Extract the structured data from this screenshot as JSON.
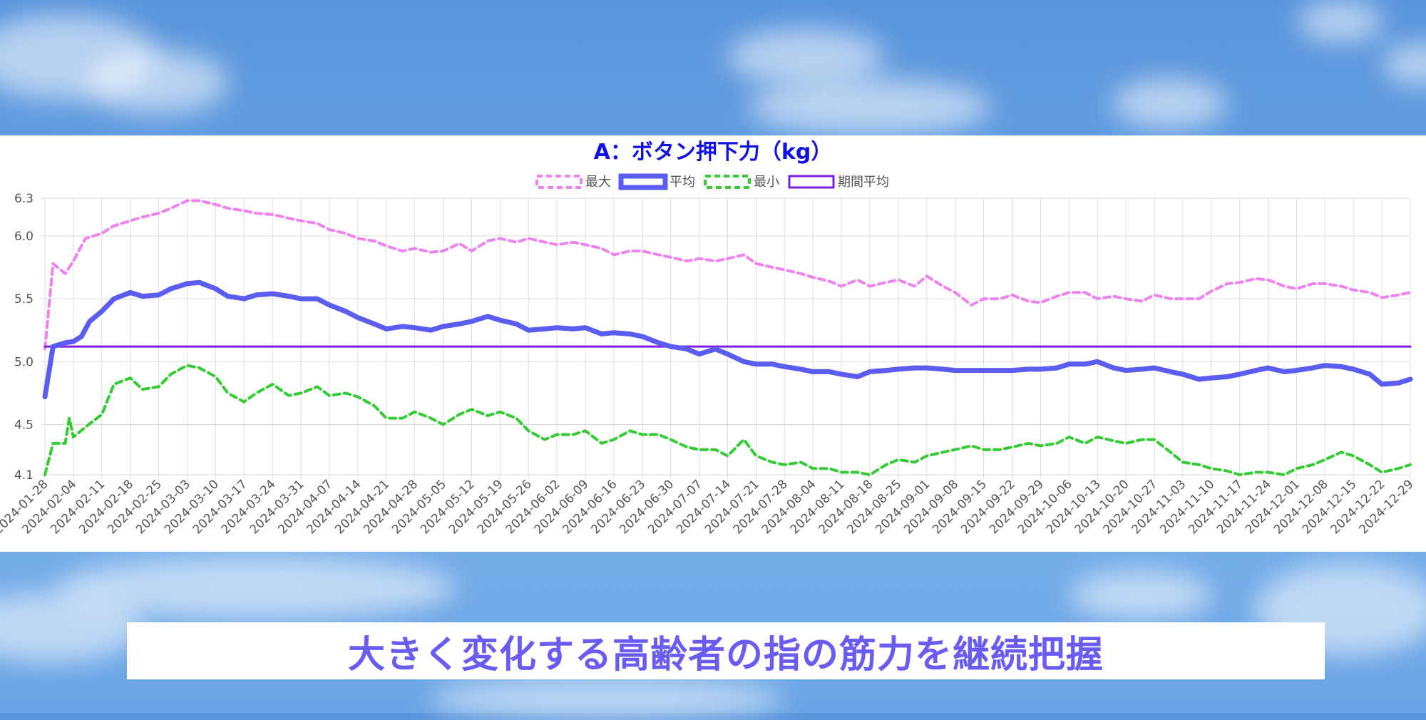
{
  "caption": "大きく変化する高齢者の指の筋力を継続把握",
  "chart_data": {
    "type": "line",
    "title": "A：ボタン押下力（kg）",
    "xlabel": "",
    "ylabel": "",
    "ylim": [
      4.1,
      6.3
    ],
    "y_ticks": [
      4.1,
      4.5,
      5.0,
      5.5,
      6.0,
      6.3
    ],
    "grid": true,
    "legend_position": "top-center",
    "x_start": "2024-01-28",
    "x_end": "2024-12-29",
    "x_tick_labels": [
      "2024-01-28",
      "2024-02-04",
      "2024-02-11",
      "2024-02-18",
      "2024-02-25",
      "2024-03-03",
      "2024-03-10",
      "2024-03-17",
      "2024-03-24",
      "2024-03-31",
      "2024-04-07",
      "2024-04-14",
      "2024-04-21",
      "2024-04-28",
      "2024-05-05",
      "2024-05-12",
      "2024-05-19",
      "2024-05-26",
      "2024-06-02",
      "2024-06-09",
      "2024-06-16",
      "2024-06-23",
      "2024-06-30",
      "2024-07-07",
      "2024-07-14",
      "2024-07-21",
      "2024-07-28",
      "2024-08-04",
      "2024-08-11",
      "2024-08-18",
      "2024-08-25",
      "2024-09-01",
      "2024-09-08",
      "2024-09-15",
      "2024-09-22",
      "2024-09-29",
      "2024-10-06",
      "2024-10-13",
      "2024-10-20",
      "2024-10-27",
      "2024-11-03",
      "2024-11-10",
      "2024-11-17",
      "2024-11-24",
      "2024-12-01",
      "2024-12-08",
      "2024-12-15",
      "2024-12-22",
      "2024-12-29"
    ],
    "series": [
      {
        "name": "最大",
        "color": "#ee82ee",
        "style": "dashed",
        "x": [
          "2024-01-28",
          "2024-01-30",
          "2024-02-02",
          "2024-02-04",
          "2024-02-07",
          "2024-02-11",
          "2024-02-14",
          "2024-02-18",
          "2024-02-21",
          "2024-02-25",
          "2024-02-28",
          "2024-03-03",
          "2024-03-06",
          "2024-03-10",
          "2024-03-13",
          "2024-03-17",
          "2024-03-20",
          "2024-03-24",
          "2024-03-28",
          "2024-03-31",
          "2024-04-04",
          "2024-04-07",
          "2024-04-11",
          "2024-04-14",
          "2024-04-18",
          "2024-04-21",
          "2024-04-25",
          "2024-04-28",
          "2024-05-02",
          "2024-05-05",
          "2024-05-09",
          "2024-05-12",
          "2024-05-16",
          "2024-05-19",
          "2024-05-23",
          "2024-05-26",
          "2024-05-30",
          "2024-06-02",
          "2024-06-06",
          "2024-06-09",
          "2024-06-13",
          "2024-06-16",
          "2024-06-20",
          "2024-06-23",
          "2024-06-27",
          "2024-06-30",
          "2024-07-04",
          "2024-07-07",
          "2024-07-11",
          "2024-07-14",
          "2024-07-18",
          "2024-07-21",
          "2024-07-25",
          "2024-07-28",
          "2024-08-01",
          "2024-08-04",
          "2024-08-08",
          "2024-08-11",
          "2024-08-15",
          "2024-08-18",
          "2024-08-22",
          "2024-08-25",
          "2024-08-29",
          "2024-09-01",
          "2024-09-05",
          "2024-09-08",
          "2024-09-12",
          "2024-09-15",
          "2024-09-19",
          "2024-09-22",
          "2024-09-26",
          "2024-09-29",
          "2024-10-03",
          "2024-10-06",
          "2024-10-10",
          "2024-10-13",
          "2024-10-17",
          "2024-10-20",
          "2024-10-24",
          "2024-10-27",
          "2024-10-31",
          "2024-11-03",
          "2024-11-07",
          "2024-11-10",
          "2024-11-14",
          "2024-11-17",
          "2024-11-21",
          "2024-11-24",
          "2024-11-28",
          "2024-12-01",
          "2024-12-05",
          "2024-12-08",
          "2024-12-12",
          "2024-12-15",
          "2024-12-19",
          "2024-12-22",
          "2024-12-26",
          "2024-12-29"
        ],
        "values": [
          5.1,
          5.78,
          5.7,
          5.8,
          5.98,
          6.02,
          6.08,
          6.12,
          6.15,
          6.18,
          6.22,
          6.28,
          6.28,
          6.25,
          6.22,
          6.2,
          6.18,
          6.17,
          6.14,
          6.12,
          6.1,
          6.05,
          6.02,
          5.98,
          5.96,
          5.92,
          5.88,
          5.9,
          5.87,
          5.88,
          5.94,
          5.88,
          5.96,
          5.98,
          5.95,
          5.98,
          5.95,
          5.93,
          5.95,
          5.93,
          5.9,
          5.85,
          5.88,
          5.88,
          5.85,
          5.83,
          5.8,
          5.82,
          5.8,
          5.82,
          5.85,
          5.78,
          5.75,
          5.73,
          5.7,
          5.67,
          5.64,
          5.6,
          5.65,
          5.6,
          5.63,
          5.65,
          5.6,
          5.68,
          5.6,
          5.55,
          5.45,
          5.5,
          5.5,
          5.53,
          5.48,
          5.47,
          5.52,
          5.55,
          5.55,
          5.5,
          5.52,
          5.5,
          5.48,
          5.53,
          5.5,
          5.5,
          5.5,
          5.56,
          5.62,
          5.63,
          5.66,
          5.65,
          5.6,
          5.58,
          5.62,
          5.62,
          5.6,
          5.57,
          5.55,
          5.51,
          5.53,
          5.55
        ]
      },
      {
        "name": "平均",
        "color": "#5b5cf0",
        "style": "solid-thick",
        "x": [
          "2024-01-28",
          "2024-01-30",
          "2024-02-02",
          "2024-02-04",
          "2024-02-06",
          "2024-02-08",
          "2024-02-11",
          "2024-02-14",
          "2024-02-18",
          "2024-02-21",
          "2024-02-25",
          "2024-02-28",
          "2024-03-03",
          "2024-03-06",
          "2024-03-10",
          "2024-03-13",
          "2024-03-17",
          "2024-03-20",
          "2024-03-24",
          "2024-03-28",
          "2024-03-31",
          "2024-04-04",
          "2024-04-07",
          "2024-04-11",
          "2024-04-14",
          "2024-04-18",
          "2024-04-21",
          "2024-04-25",
          "2024-04-28",
          "2024-05-02",
          "2024-05-05",
          "2024-05-09",
          "2024-05-12",
          "2024-05-16",
          "2024-05-19",
          "2024-05-23",
          "2024-05-26",
          "2024-05-30",
          "2024-06-02",
          "2024-06-06",
          "2024-06-09",
          "2024-06-13",
          "2024-06-16",
          "2024-06-20",
          "2024-06-23",
          "2024-06-27",
          "2024-06-30",
          "2024-07-04",
          "2024-07-07",
          "2024-07-11",
          "2024-07-14",
          "2024-07-18",
          "2024-07-21",
          "2024-07-25",
          "2024-07-28",
          "2024-08-01",
          "2024-08-04",
          "2024-08-08",
          "2024-08-11",
          "2024-08-15",
          "2024-08-18",
          "2024-08-22",
          "2024-08-25",
          "2024-08-29",
          "2024-09-01",
          "2024-09-05",
          "2024-09-08",
          "2024-09-12",
          "2024-09-15",
          "2024-09-19",
          "2024-09-22",
          "2024-09-26",
          "2024-09-29",
          "2024-10-03",
          "2024-10-06",
          "2024-10-10",
          "2024-10-13",
          "2024-10-17",
          "2024-10-20",
          "2024-10-24",
          "2024-10-27",
          "2024-10-31",
          "2024-11-03",
          "2024-11-07",
          "2024-11-10",
          "2024-11-14",
          "2024-11-17",
          "2024-11-21",
          "2024-11-24",
          "2024-11-28",
          "2024-12-01",
          "2024-12-05",
          "2024-12-08",
          "2024-12-12",
          "2024-12-15",
          "2024-12-19",
          "2024-12-22",
          "2024-12-26",
          "2024-12-29"
        ],
        "values": [
          4.72,
          5.12,
          5.15,
          5.16,
          5.2,
          5.32,
          5.4,
          5.5,
          5.55,
          5.52,
          5.53,
          5.58,
          5.62,
          5.63,
          5.58,
          5.52,
          5.5,
          5.53,
          5.54,
          5.52,
          5.5,
          5.5,
          5.45,
          5.4,
          5.35,
          5.3,
          5.26,
          5.28,
          5.27,
          5.25,
          5.28,
          5.3,
          5.32,
          5.36,
          5.33,
          5.3,
          5.25,
          5.26,
          5.27,
          5.26,
          5.27,
          5.22,
          5.23,
          5.22,
          5.2,
          5.15,
          5.12,
          5.1,
          5.06,
          5.1,
          5.06,
          5.0,
          4.98,
          4.98,
          4.96,
          4.94,
          4.92,
          4.92,
          4.9,
          4.88,
          4.92,
          4.93,
          4.94,
          4.95,
          4.95,
          4.94,
          4.93,
          4.93,
          4.93,
          4.93,
          4.93,
          4.94,
          4.94,
          4.95,
          4.98,
          4.98,
          5.0,
          4.95,
          4.93,
          4.94,
          4.95,
          4.92,
          4.9,
          4.86,
          4.87,
          4.88,
          4.9,
          4.93,
          4.95,
          4.92,
          4.93,
          4.95,
          4.97,
          4.96,
          4.94,
          4.9,
          4.82,
          4.83,
          4.86
        ]
      },
      {
        "name": "最小",
        "color": "#33cc33",
        "style": "dashed",
        "x": [
          "2024-01-28",
          "2024-01-30",
          "2024-02-02",
          "2024-02-03",
          "2024-02-04",
          "2024-02-07",
          "2024-02-11",
          "2024-02-14",
          "2024-02-18",
          "2024-02-21",
          "2024-02-25",
          "2024-02-28",
          "2024-03-03",
          "2024-03-06",
          "2024-03-10",
          "2024-03-13",
          "2024-03-17",
          "2024-03-20",
          "2024-03-24",
          "2024-03-28",
          "2024-03-31",
          "2024-04-04",
          "2024-04-07",
          "2024-04-11",
          "2024-04-14",
          "2024-04-18",
          "2024-04-21",
          "2024-04-25",
          "2024-04-28",
          "2024-05-02",
          "2024-05-05",
          "2024-05-09",
          "2024-05-12",
          "2024-05-16",
          "2024-05-19",
          "2024-05-23",
          "2024-05-26",
          "2024-05-30",
          "2024-06-02",
          "2024-06-06",
          "2024-06-09",
          "2024-06-13",
          "2024-06-16",
          "2024-06-20",
          "2024-06-23",
          "2024-06-27",
          "2024-06-30",
          "2024-07-04",
          "2024-07-07",
          "2024-07-11",
          "2024-07-14",
          "2024-07-18",
          "2024-07-21",
          "2024-07-25",
          "2024-07-28",
          "2024-08-01",
          "2024-08-04",
          "2024-08-08",
          "2024-08-11",
          "2024-08-15",
          "2024-08-18",
          "2024-08-22",
          "2024-08-25",
          "2024-08-29",
          "2024-09-01",
          "2024-09-05",
          "2024-09-08",
          "2024-09-12",
          "2024-09-15",
          "2024-09-19",
          "2024-09-22",
          "2024-09-26",
          "2024-09-29",
          "2024-10-03",
          "2024-10-06",
          "2024-10-10",
          "2024-10-13",
          "2024-10-17",
          "2024-10-20",
          "2024-10-24",
          "2024-10-27",
          "2024-10-31",
          "2024-11-03",
          "2024-11-07",
          "2024-11-10",
          "2024-11-14",
          "2024-11-17",
          "2024-11-21",
          "2024-11-24",
          "2024-11-28",
          "2024-12-01",
          "2024-12-05",
          "2024-12-08",
          "2024-12-12",
          "2024-12-15",
          "2024-12-19",
          "2024-12-22",
          "2024-12-26",
          "2024-12-29"
        ],
        "values": [
          4.1,
          4.35,
          4.35,
          4.55,
          4.4,
          4.48,
          4.58,
          4.82,
          4.87,
          4.78,
          4.8,
          4.9,
          4.97,
          4.95,
          4.88,
          4.75,
          4.68,
          4.75,
          4.82,
          4.73,
          4.75,
          4.8,
          4.73,
          4.75,
          4.72,
          4.65,
          4.55,
          4.55,
          4.6,
          4.55,
          4.5,
          4.58,
          4.62,
          4.57,
          4.6,
          4.55,
          4.45,
          4.38,
          4.42,
          4.42,
          4.45,
          4.35,
          4.38,
          4.45,
          4.42,
          4.42,
          4.38,
          4.32,
          4.3,
          4.3,
          4.25,
          4.38,
          4.25,
          4.2,
          4.18,
          4.2,
          4.15,
          4.15,
          4.12,
          4.12,
          4.1,
          4.18,
          4.22,
          4.2,
          4.25,
          4.28,
          4.3,
          4.33,
          4.3,
          4.3,
          4.32,
          4.35,
          4.33,
          4.35,
          4.4,
          4.35,
          4.4,
          4.37,
          4.35,
          4.38,
          4.38,
          4.28,
          4.2,
          4.18,
          4.15,
          4.13,
          4.1,
          4.12,
          4.12,
          4.1,
          4.15,
          4.18,
          4.22,
          4.28,
          4.25,
          4.18,
          4.12,
          4.15,
          4.18
        ]
      },
      {
        "name": "期間平均",
        "color": "#7a1ee8",
        "style": "solid",
        "x": [
          "2024-01-28",
          "2024-12-29"
        ],
        "values": [
          5.12,
          5.12
        ]
      }
    ]
  }
}
